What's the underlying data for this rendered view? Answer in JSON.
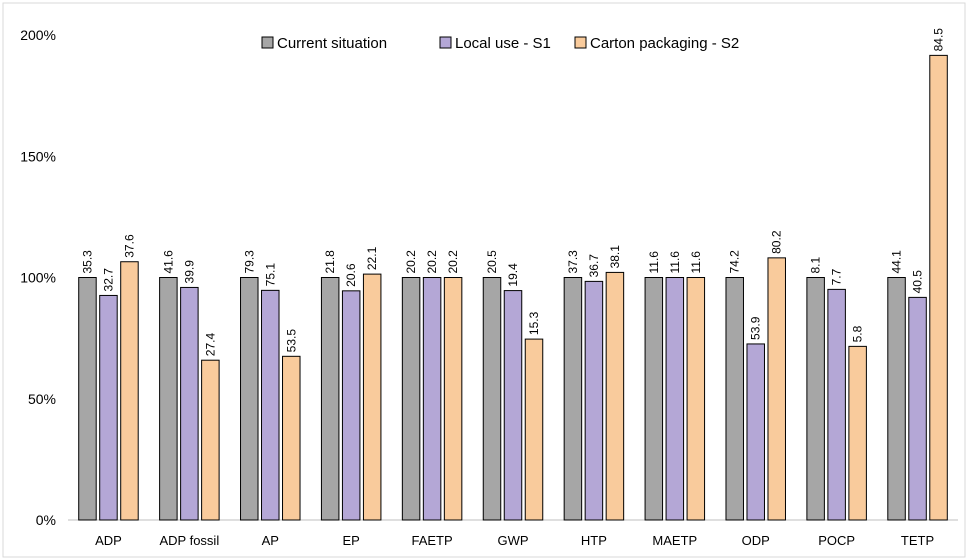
{
  "chart_data": {
    "type": "bar",
    "title": "",
    "xlabel": "",
    "ylabel": "",
    "ylim": [
      0,
      200
    ],
    "y_ticks": [
      "0%",
      "50%",
      "100%",
      "150%",
      "200%"
    ],
    "grid": false,
    "legend_position": "top-center",
    "categories": [
      "ADP",
      "ADP fossil",
      "AP",
      "EP",
      "FAETP",
      "GWP",
      "HTP",
      "MAETP",
      "ODP",
      "POCP",
      "TETP"
    ],
    "series": [
      {
        "name": "Current situation",
        "color": "#a6a6a6",
        "values": [
          100,
          100,
          100,
          100,
          100,
          100,
          100,
          100,
          100,
          100,
          100
        ],
        "labels": [
          "35.3",
          "41.6",
          "79.3",
          "21.8",
          "20.2",
          "20.5",
          "37.3",
          "11.6",
          "74.2",
          "8.1",
          "44.1"
        ]
      },
      {
        "name": "Local use - S1",
        "color": "#b4a7d6",
        "values": [
          92.6,
          95.9,
          94.7,
          94.5,
          100,
          94.6,
          98.4,
          100,
          72.6,
          95.1,
          91.8
        ],
        "labels": [
          "32.7",
          "39.9",
          "75.1",
          "20.6",
          "20.2",
          "19.4",
          "36.7",
          "11.6",
          "53.9",
          "7.7",
          "40.5"
        ]
      },
      {
        "name": "Carton packaging - S2",
        "color": "#f9cb9c",
        "values": [
          106.5,
          65.9,
          67.5,
          101.4,
          100,
          74.6,
          102.1,
          100,
          108.1,
          71.6,
          191.6
        ],
        "labels": [
          "37.6",
          "27.4",
          "53.5",
          "22.1",
          "20.2",
          "15.3",
          "38.1",
          "11.6",
          "80.2",
          "5.8",
          "84.5"
        ]
      }
    ]
  }
}
